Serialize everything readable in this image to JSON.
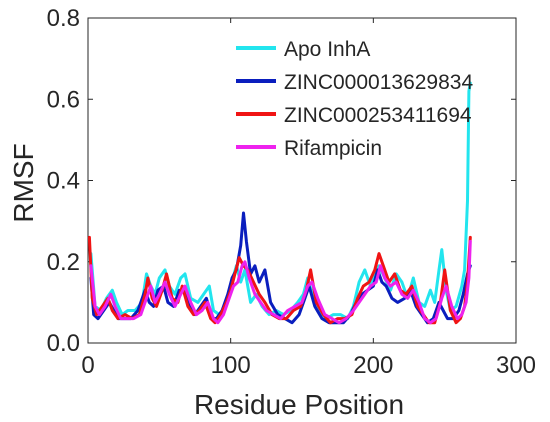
{
  "chart_data": {
    "type": "line",
    "xlabel": "Residue Position",
    "ylabel": "RMSF",
    "xlim": [
      0,
      300
    ],
    "ylim": [
      0,
      0.8
    ],
    "xticks": [
      "0",
      "100",
      "200",
      "300"
    ],
    "yticks": [
      "0.0",
      "0.2",
      "0.4",
      "0.6",
      "0.8"
    ],
    "grid": false,
    "legend_position": "top-right",
    "series": [
      {
        "name": "Apo InhA",
        "color": "#22e5ee",
        "x": [
          2,
          5,
          9,
          13,
          17,
          20,
          24,
          28,
          33,
          38,
          41,
          44,
          47,
          50,
          54,
          57,
          61,
          65,
          68,
          72,
          77,
          81,
          85,
          88,
          92,
          96,
          100,
          104,
          107,
          110,
          114,
          118,
          122,
          127,
          132,
          137,
          142,
          147,
          151,
          154,
          158,
          162,
          167,
          172,
          177,
          182,
          186,
          190,
          194,
          198,
          201,
          204,
          208,
          212,
          216,
          220,
          224,
          228,
          232,
          236,
          240,
          243,
          246,
          248,
          251,
          254,
          258,
          262,
          264,
          266,
          267,
          268
        ],
        "y": [
          0.22,
          0.09,
          0.08,
          0.11,
          0.13,
          0.1,
          0.07,
          0.08,
          0.08,
          0.1,
          0.17,
          0.14,
          0.12,
          0.16,
          0.18,
          0.14,
          0.12,
          0.16,
          0.17,
          0.11,
          0.1,
          0.12,
          0.14,
          0.08,
          0.07,
          0.09,
          0.14,
          0.19,
          0.15,
          0.18,
          0.1,
          0.12,
          0.09,
          0.07,
          0.08,
          0.07,
          0.08,
          0.1,
          0.12,
          0.16,
          0.11,
          0.08,
          0.06,
          0.07,
          0.07,
          0.06,
          0.09,
          0.15,
          0.18,
          0.14,
          0.17,
          0.19,
          0.16,
          0.13,
          0.17,
          0.15,
          0.11,
          0.16,
          0.1,
          0.09,
          0.13,
          0.1,
          0.18,
          0.23,
          0.13,
          0.08,
          0.09,
          0.14,
          0.18,
          0.35,
          0.62,
          0.64
        ]
      },
      {
        "name": "ZINC000013629834",
        "color": "#0a1ebe",
        "x": [
          2,
          4,
          7,
          11,
          15,
          18,
          21,
          25,
          30,
          35,
          40,
          43,
          46,
          49,
          53,
          56,
          60,
          64,
          67,
          71,
          75,
          79,
          83,
          87,
          90,
          94,
          98,
          101,
          104,
          107,
          109,
          111,
          114,
          117,
          120,
          124,
          128,
          133,
          138,
          143,
          148,
          152,
          155,
          159,
          164,
          169,
          174,
          179,
          184,
          188,
          192,
          196,
          200,
          203,
          206,
          209,
          213,
          217,
          222,
          226,
          230,
          234,
          238,
          242,
          246,
          249,
          252,
          256,
          260,
          263,
          266,
          268
        ],
        "y": [
          0.16,
          0.07,
          0.06,
          0.08,
          0.1,
          0.08,
          0.06,
          0.06,
          0.06,
          0.08,
          0.13,
          0.1,
          0.09,
          0.13,
          0.14,
          0.1,
          0.09,
          0.13,
          0.13,
          0.09,
          0.07,
          0.09,
          0.11,
          0.06,
          0.06,
          0.08,
          0.12,
          0.16,
          0.18,
          0.24,
          0.32,
          0.25,
          0.17,
          0.19,
          0.15,
          0.18,
          0.1,
          0.07,
          0.06,
          0.05,
          0.07,
          0.11,
          0.14,
          0.09,
          0.06,
          0.05,
          0.05,
          0.05,
          0.07,
          0.1,
          0.12,
          0.13,
          0.14,
          0.18,
          0.15,
          0.14,
          0.11,
          0.1,
          0.11,
          0.13,
          0.09,
          0.07,
          0.05,
          0.06,
          0.1,
          0.08,
          0.06,
          0.06,
          0.08,
          0.12,
          0.17,
          0.19
        ]
      },
      {
        "name": "ZINC000253411694",
        "color": "#f01414",
        "x": [
          1,
          3,
          6,
          10,
          14,
          17,
          21,
          26,
          31,
          36,
          40,
          42,
          45,
          48,
          52,
          55,
          59,
          63,
          66,
          70,
          74,
          78,
          82,
          86,
          89,
          93,
          97,
          100,
          103,
          106,
          109,
          112,
          116,
          120,
          124,
          129,
          134,
          139,
          144,
          149,
          153,
          156,
          160,
          165,
          170,
          175,
          180,
          185,
          189,
          193,
          197,
          201,
          204,
          207,
          211,
          215,
          219,
          223,
          227,
          231,
          235,
          239,
          243,
          247,
          250,
          254,
          258,
          261,
          264,
          266,
          268
        ],
        "y": [
          0.26,
          0.11,
          0.07,
          0.09,
          0.11,
          0.08,
          0.06,
          0.07,
          0.06,
          0.07,
          0.12,
          0.16,
          0.11,
          0.09,
          0.13,
          0.17,
          0.11,
          0.1,
          0.14,
          0.09,
          0.07,
          0.08,
          0.1,
          0.06,
          0.05,
          0.07,
          0.1,
          0.13,
          0.17,
          0.21,
          0.19,
          0.18,
          0.15,
          0.12,
          0.1,
          0.07,
          0.06,
          0.06,
          0.08,
          0.09,
          0.13,
          0.18,
          0.1,
          0.07,
          0.05,
          0.06,
          0.06,
          0.07,
          0.11,
          0.14,
          0.15,
          0.18,
          0.22,
          0.19,
          0.15,
          0.17,
          0.13,
          0.12,
          0.14,
          0.09,
          0.07,
          0.05,
          0.05,
          0.1,
          0.18,
          0.08,
          0.05,
          0.06,
          0.09,
          0.15,
          0.26
        ]
      },
      {
        "name": "Rifampicin",
        "color": "#ee22ee",
        "x": [
          2,
          5,
          8,
          12,
          16,
          19,
          23,
          27,
          32,
          37,
          41,
          44,
          47,
          50,
          54,
          57,
          61,
          65,
          68,
          72,
          76,
          80,
          84,
          88,
          91,
          95,
          99,
          102,
          105,
          108,
          110,
          113,
          117,
          121,
          125,
          130,
          135,
          140,
          145,
          150,
          154,
          157,
          161,
          166,
          171,
          176,
          181,
          186,
          190,
          194,
          198,
          202,
          205,
          208,
          212,
          216,
          220,
          224,
          228,
          232,
          236,
          240,
          244,
          248,
          251,
          255,
          259,
          262,
          265,
          267,
          268
        ],
        "y": [
          0.19,
          0.09,
          0.07,
          0.09,
          0.12,
          0.09,
          0.06,
          0.06,
          0.06,
          0.07,
          0.11,
          0.14,
          0.1,
          0.12,
          0.15,
          0.12,
          0.09,
          0.12,
          0.14,
          0.1,
          0.07,
          0.08,
          0.1,
          0.06,
          0.05,
          0.07,
          0.11,
          0.14,
          0.15,
          0.19,
          0.2,
          0.16,
          0.12,
          0.1,
          0.08,
          0.07,
          0.06,
          0.08,
          0.09,
          0.1,
          0.14,
          0.15,
          0.11,
          0.07,
          0.06,
          0.05,
          0.06,
          0.08,
          0.1,
          0.12,
          0.14,
          0.15,
          0.19,
          0.16,
          0.14,
          0.15,
          0.12,
          0.11,
          0.13,
          0.1,
          0.06,
          0.05,
          0.06,
          0.11,
          0.14,
          0.09,
          0.06,
          0.07,
          0.1,
          0.16,
          0.25
        ]
      }
    ]
  }
}
